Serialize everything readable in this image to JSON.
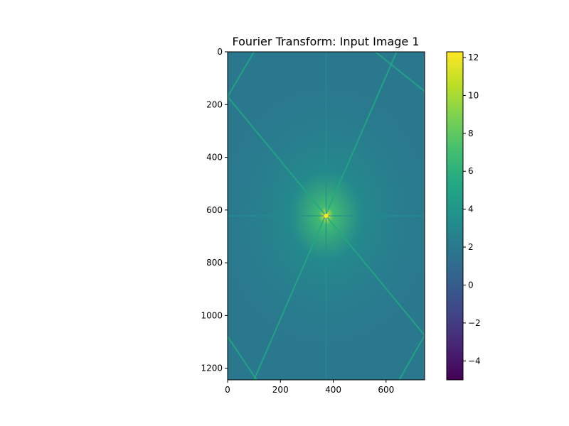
{
  "chart_data": {
    "type": "heatmap",
    "title": "Fourier Transform: Input Image 1",
    "xlabel": "",
    "ylabel": "",
    "xlim": [
      0,
      746
    ],
    "ylim": [
      1244,
      0
    ],
    "x_ticks": [
      0,
      200,
      400,
      600
    ],
    "y_ticks": [
      0,
      200,
      400,
      600,
      800,
      1000,
      1200
    ],
    "x_tick_labels": [
      "0",
      "200",
      "400",
      "600"
    ],
    "y_tick_labels": [
      "0",
      "200",
      "400",
      "600",
      "800",
      "1000",
      "1200"
    ],
    "spectrum_center": [
      373,
      622
    ],
    "peak_value": 12.2,
    "background_level": 1.2,
    "radial_streaks": [
      {
        "from": [
          0,
          170
        ],
        "to": [
          746,
          1075
        ]
      },
      {
        "from": [
          100,
          1244
        ],
        "to": [
          640,
          0
        ]
      },
      {
        "from": [
          100,
          0
        ],
        "to": [
          0,
          170
        ]
      },
      {
        "from": [
          560,
          0
        ],
        "to": [
          746,
          150
        ]
      },
      {
        "from": [
          0,
          1080
        ],
        "to": [
          110,
          1244
        ]
      },
      {
        "from": [
          650,
          1244
        ],
        "to": [
          746,
          1075
        ]
      }
    ],
    "colormap": "viridis",
    "colorbar": {
      "min": -5,
      "max": 12.3,
      "ticks": [
        -4,
        -2,
        0,
        2,
        4,
        6,
        8,
        10,
        12
      ],
      "tick_labels": [
        "−4",
        "−2",
        "0",
        "2",
        "4",
        "6",
        "8",
        "10",
        "12"
      ]
    },
    "grid": false
  }
}
